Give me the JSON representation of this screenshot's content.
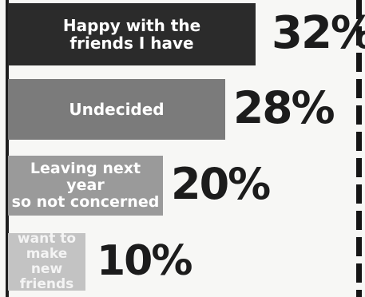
{
  "chart_data": {
    "type": "bar",
    "orientation": "horizontal",
    "categories": [
      "Happy with the\nfriends I have",
      "Undecided",
      "Leaving next year\nso not concerned",
      "want to make\nnew friends"
    ],
    "values": [
      32,
      28,
      20,
      10
    ],
    "value_labels": [
      "32%",
      "28%",
      "20%",
      "10%"
    ],
    "colors": [
      "#2b2b2b",
      "#7b7b7b",
      "#9a9a9a",
      "#c3c3c3"
    ],
    "title": "",
    "xlabel": "",
    "ylabel": "",
    "grid": false,
    "legend": "none"
  }
}
